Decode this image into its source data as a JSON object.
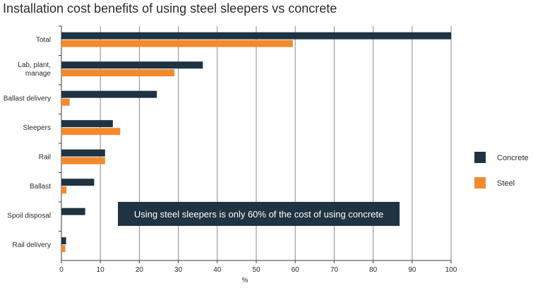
{
  "chart_data": {
    "type": "bar",
    "orientation": "horizontal",
    "title": "Installation cost benefits of using steel sleepers vs concrete",
    "xlabel": "%",
    "ylabel": "",
    "xlim": [
      0,
      100
    ],
    "xticks": [
      "0",
      "10",
      "20",
      "30",
      "40",
      "50",
      "60",
      "70",
      "80",
      "90",
      "100"
    ],
    "grid": true,
    "legend_position": "right",
    "categories": [
      [
        "Total"
      ],
      [
        "Lab, plant,",
        "manage"
      ],
      [
        "Ballast delivery"
      ],
      [
        "Sleepers"
      ],
      [
        "Rail"
      ],
      [
        "Ballast"
      ],
      [
        "Spoil disposal"
      ],
      [
        "Rail delivery"
      ]
    ],
    "series": [
      {
        "name": "Concrete",
        "color": "#1f3342",
        "values": [
          100,
          36.3,
          24.5,
          13.2,
          11.2,
          8.4,
          6.1,
          1.2
        ]
      },
      {
        "name": "Steel",
        "color": "#f28a2e",
        "values": [
          59.4,
          29.0,
          2.1,
          15.1,
          11.2,
          1.3,
          0,
          1.0
        ]
      }
    ],
    "annotation": "Using steel sleepers is only 60% of the cost of using concrete"
  }
}
